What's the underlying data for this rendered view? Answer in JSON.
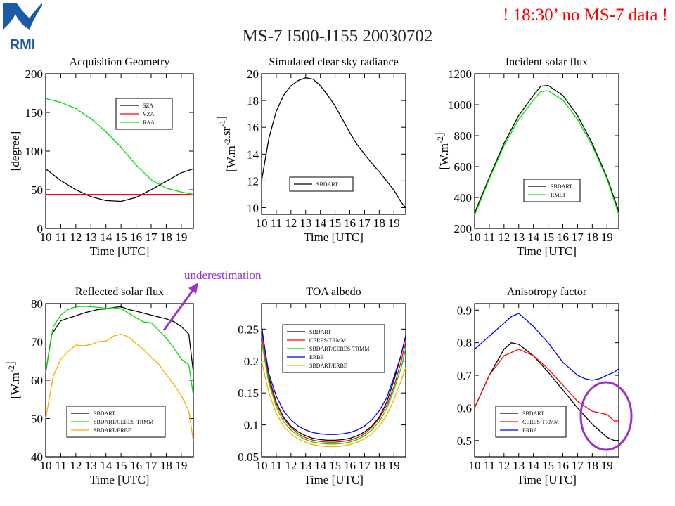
{
  "header": {
    "logo_text": "RMI",
    "title": "MS-7 I500-J155 20030702",
    "note": "! 18:30’ no MS-7 data !",
    "annotation": "underestimation"
  },
  "colors": {
    "black": "#000000",
    "red": "#ff0000",
    "green": "#00dd00",
    "orange": "#ffaa00",
    "blue": "#0000ff",
    "purple": "#9933cc",
    "logo": "#1a5aa8"
  },
  "chart_data": [
    {
      "id": "geometry",
      "type": "line",
      "title": "Acquisition Geometry",
      "xlabel": "Time [UTC]",
      "ylabel": "[degree]",
      "xlim": [
        10,
        19.8
      ],
      "ylim": [
        0,
        200
      ],
      "xticks": [
        10,
        11,
        12,
        13,
        14,
        15,
        16,
        17,
        18,
        19
      ],
      "yticks": [
        0,
        50,
        100,
        150,
        200
      ],
      "series": [
        {
          "name": "SZA",
          "color": "#000000",
          "x": [
            10,
            11,
            12,
            13,
            14,
            15,
            16,
            17,
            18,
            19,
            19.8
          ],
          "y": [
            77,
            62,
            50,
            41,
            36,
            35,
            40,
            50,
            61,
            72,
            77
          ]
        },
        {
          "name": "VZA",
          "color": "#ff0000",
          "x": [
            10,
            19.8
          ],
          "y": [
            44,
            44
          ]
        },
        {
          "name": "RAA",
          "color": "#00dd00",
          "x": [
            10,
            11,
            12,
            13,
            14,
            15,
            16,
            17,
            18,
            19,
            19.8
          ],
          "y": [
            168,
            163,
            155,
            142,
            125,
            105,
            82,
            63,
            52,
            47,
            44
          ]
        }
      ]
    },
    {
      "id": "radiance",
      "type": "line",
      "title": "Simulated clear sky radiance",
      "xlabel": "Time [UTC]",
      "ylabel": "[W.m^-2.sr^-1]",
      "xlim": [
        10,
        19.8
      ],
      "ylim": [
        9.5,
        20
      ],
      "xticks": [
        10,
        11,
        12,
        13,
        14,
        15,
        16,
        17,
        18,
        19
      ],
      "yticks": [
        10,
        12,
        14,
        16,
        18,
        20
      ],
      "series": [
        {
          "name": "SBDART",
          "color": "#000000",
          "x": [
            10,
            10.5,
            11,
            11.5,
            12,
            12.5,
            13,
            13.5,
            14,
            14.5,
            15,
            15.5,
            16,
            16.5,
            17,
            17.5,
            18,
            18.5,
            19,
            19.5,
            19.8
          ],
          "y": [
            12.0,
            15.2,
            17.2,
            18.4,
            19.1,
            19.5,
            19.7,
            19.6,
            19.1,
            18.4,
            17.6,
            16.6,
            15.6,
            14.7,
            14.0,
            13.3,
            12.7,
            12.0,
            11.3,
            10.4,
            10.0
          ]
        }
      ]
    },
    {
      "id": "incident",
      "type": "line",
      "title": "Incident solar flux",
      "xlabel": "Time [UTC]",
      "ylabel": "[W.m^-2]",
      "xlim": [
        10,
        19.8
      ],
      "ylim": [
        200,
        1200
      ],
      "xticks": [
        10,
        11,
        12,
        13,
        14,
        15,
        16,
        17,
        18,
        19
      ],
      "yticks": [
        200,
        400,
        600,
        800,
        1000,
        1200
      ],
      "series": [
        {
          "name": "SBDART",
          "color": "#000000",
          "x": [
            10,
            11,
            12,
            13,
            14,
            14.5,
            15,
            16,
            17,
            18,
            19,
            19.8
          ],
          "y": [
            300,
            530,
            750,
            930,
            1060,
            1120,
            1125,
            1060,
            930,
            750,
            530,
            310
          ]
        },
        {
          "name": "RMIB",
          "color": "#00dd00",
          "x": [
            10,
            11,
            12,
            13,
            14,
            14.5,
            15,
            16,
            17,
            18,
            19,
            19.8
          ],
          "y": [
            285,
            520,
            735,
            905,
            1030,
            1085,
            1090,
            1030,
            905,
            735,
            520,
            290
          ]
        }
      ]
    },
    {
      "id": "reflected",
      "type": "line",
      "title": "Reflected solar flux",
      "xlabel": "Time [UTC]",
      "ylabel": "[W.m^-2]",
      "xlim": [
        10,
        19.8
      ],
      "ylim": [
        40,
        80
      ],
      "xticks": [
        10,
        11,
        12,
        13,
        14,
        15,
        16,
        17,
        18,
        19
      ],
      "yticks": [
        40,
        50,
        60,
        70,
        80
      ],
      "series": [
        {
          "name": "SBDART",
          "color": "#000000",
          "x": [
            10,
            10.4,
            11,
            11.5,
            12,
            12.5,
            13,
            13.5,
            14,
            14.5,
            15,
            15.5,
            16,
            17,
            18,
            18.5,
            19,
            19.5,
            19.8
          ],
          "y": [
            62,
            72,
            75.5,
            76.2,
            76.8,
            77.5,
            78,
            78.5,
            78.6,
            79,
            79.2,
            78.5,
            78,
            77,
            76,
            75.3,
            74,
            72,
            62
          ]
        },
        {
          "name": "SBDART/CERES-TRMM",
          "color": "#00dd00",
          "x": [
            10,
            10.5,
            11,
            11.5,
            12,
            12.5,
            13,
            13.5,
            14,
            14.5,
            15,
            15.5,
            16,
            16.5,
            17,
            17.5,
            18,
            18.5,
            19,
            19.5,
            19.8
          ],
          "y": [
            62,
            74,
            77,
            78.5,
            79.2,
            79.3,
            79.2,
            79,
            78.8,
            78.9,
            78.7,
            77.5,
            76.3,
            75.2,
            75,
            73,
            71,
            68.5,
            65.5,
            64,
            56
          ]
        },
        {
          "name": "SBDART/ERBE",
          "color": "#ffaa00",
          "x": [
            10,
            10.5,
            11,
            11.5,
            12,
            12.5,
            13,
            13.5,
            14,
            14.5,
            15,
            15.5,
            16,
            16.5,
            17,
            17.5,
            18,
            18.5,
            19,
            19.5,
            19.8
          ],
          "y": [
            50,
            61,
            65.5,
            67.5,
            69.2,
            69,
            69.3,
            70.1,
            70.2,
            71.5,
            72,
            71.3,
            69.6,
            68,
            66,
            64.2,
            61.5,
            59,
            56,
            52,
            44
          ]
        }
      ]
    },
    {
      "id": "albedo",
      "type": "line",
      "title": "TOA albedo",
      "xlabel": "Time [UTC]",
      "ylabel": "",
      "xlim": [
        10,
        19.8
      ],
      "ylim": [
        0.05,
        0.29
      ],
      "xticks": [
        10,
        11,
        12,
        13,
        14,
        15,
        16,
        17,
        18,
        19
      ],
      "yticks": [
        0.05,
        0.1,
        0.15,
        0.2,
        0.25
      ],
      "series": [
        {
          "name": "SBDART",
          "color": "#000000",
          "x": [
            10,
            10.5,
            11,
            11.5,
            12,
            12.5,
            13,
            13.5,
            14,
            14.5,
            15,
            15.5,
            16,
            16.5,
            17,
            17.5,
            18,
            18.5,
            19,
            19.5,
            19.8
          ],
          "y": [
            0.255,
            0.175,
            0.135,
            0.112,
            0.098,
            0.089,
            0.083,
            0.079,
            0.077,
            0.076,
            0.076,
            0.077,
            0.079,
            0.083,
            0.089,
            0.098,
            0.112,
            0.135,
            0.17,
            0.21,
            0.24
          ]
        },
        {
          "name": "CERES-TRMM",
          "color": "#ff0000",
          "x": [
            10,
            10.5,
            11,
            11.5,
            12,
            12.5,
            13,
            13.5,
            14,
            14.5,
            15,
            15.5,
            16,
            16.5,
            17,
            17.5,
            18,
            18.5,
            19,
            19.5,
            19.8
          ],
          "y": [
            0.24,
            0.17,
            0.133,
            0.11,
            0.096,
            0.086,
            0.08,
            0.076,
            0.074,
            0.073,
            0.073,
            0.074,
            0.076,
            0.08,
            0.086,
            0.096,
            0.11,
            0.13,
            0.16,
            0.2,
            0.23
          ]
        },
        {
          "name": "SBDART/CERES-TRMM",
          "color": "#00dd00",
          "x": [
            10,
            10.5,
            11,
            11.5,
            12,
            12.5,
            13,
            13.5,
            14,
            14.5,
            15,
            15.5,
            16,
            16.5,
            17,
            17.5,
            18,
            18.5,
            19,
            19.5,
            19.8
          ],
          "y": [
            0.23,
            0.165,
            0.128,
            0.105,
            0.092,
            0.083,
            0.077,
            0.073,
            0.071,
            0.07,
            0.07,
            0.071,
            0.073,
            0.077,
            0.083,
            0.092,
            0.105,
            0.125,
            0.155,
            0.19,
            0.22
          ]
        },
        {
          "name": "ERBE",
          "color": "#0000ff",
          "x": [
            10,
            10.5,
            11,
            11.5,
            12,
            12.5,
            13,
            13.5,
            14,
            14.5,
            15,
            15.5,
            16,
            16.5,
            17,
            17.5,
            18,
            18.5,
            19,
            19.5,
            19.8
          ],
          "y": [
            0.25,
            0.18,
            0.145,
            0.122,
            0.108,
            0.098,
            0.092,
            0.088,
            0.086,
            0.085,
            0.085,
            0.086,
            0.088,
            0.092,
            0.098,
            0.108,
            0.122,
            0.142,
            0.175,
            0.21,
            0.24
          ]
        },
        {
          "name": "SBDART/ERBE",
          "color": "#ffaa00",
          "x": [
            10,
            10.5,
            11,
            11.5,
            12,
            12.5,
            13,
            13.5,
            14,
            14.5,
            15,
            15.5,
            16,
            16.5,
            17,
            17.5,
            18,
            18.5,
            19,
            19.5,
            19.8
          ],
          "y": [
            0.2,
            0.15,
            0.118,
            0.098,
            0.086,
            0.078,
            0.073,
            0.069,
            0.067,
            0.066,
            0.066,
            0.067,
            0.069,
            0.073,
            0.078,
            0.086,
            0.098,
            0.115,
            0.14,
            0.17,
            0.19
          ]
        }
      ]
    },
    {
      "id": "anisotropy",
      "type": "line",
      "title": "Anisotropy factor",
      "xlabel": "Time [UTC]",
      "ylabel": "",
      "xlim": [
        10,
        19.8
      ],
      "ylim": [
        0.45,
        0.92
      ],
      "xticks": [
        10,
        11,
        12,
        13,
        14,
        15,
        16,
        17,
        18,
        19
      ],
      "yticks": [
        0.5,
        0.6,
        0.7,
        0.8,
        0.9
      ],
      "series": [
        {
          "name": "SBDART",
          "color": "#000000",
          "x": [
            10,
            11,
            12,
            12.5,
            13,
            14,
            15,
            16,
            17,
            18,
            18.5,
            19,
            19.5,
            19.8
          ],
          "y": [
            0.6,
            0.7,
            0.78,
            0.8,
            0.795,
            0.76,
            0.71,
            0.655,
            0.6,
            0.55,
            0.53,
            0.51,
            0.5,
            0.5
          ]
        },
        {
          "name": "CERES-TRMM",
          "color": "#ff0000",
          "x": [
            10,
            11,
            12,
            13,
            14,
            15,
            16,
            17,
            18,
            19,
            19.5,
            19.8
          ],
          "y": [
            0.6,
            0.7,
            0.76,
            0.78,
            0.76,
            0.72,
            0.67,
            0.62,
            0.59,
            0.58,
            0.56,
            0.56
          ]
        },
        {
          "name": "ERBE",
          "color": "#0000ff",
          "x": [
            10,
            11,
            12,
            12.5,
            13,
            14,
            15,
            16,
            17,
            17.5,
            18,
            18.5,
            19,
            19.5,
            19.8
          ],
          "y": [
            0.78,
            0.82,
            0.86,
            0.88,
            0.89,
            0.85,
            0.8,
            0.74,
            0.7,
            0.69,
            0.685,
            0.69,
            0.7,
            0.71,
            0.72
          ]
        }
      ]
    }
  ]
}
